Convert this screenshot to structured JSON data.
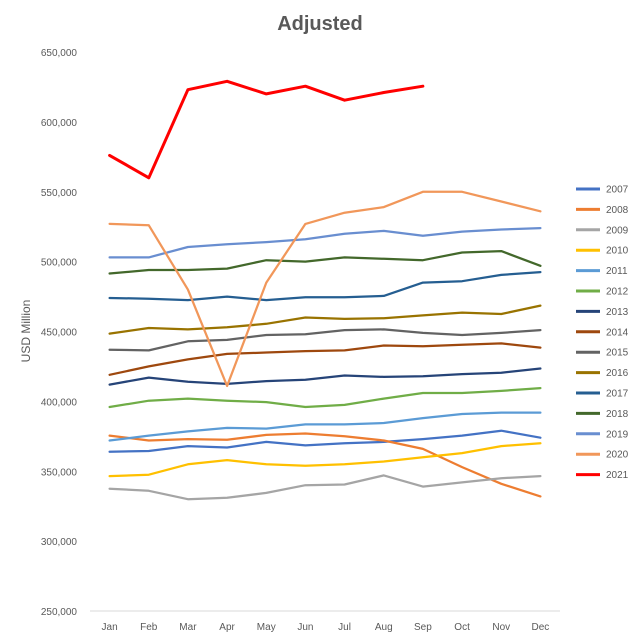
{
  "chart_data": {
    "type": "line",
    "title": "Adjusted",
    "xlabel": "",
    "ylabel": "USD Million",
    "ylim": [
      250000,
      650000
    ],
    "y_ticks": [
      "250,000",
      "300,000",
      "350,000",
      "400,000",
      "450,000",
      "500,000",
      "550,000",
      "600,000",
      "650,000"
    ],
    "categories": [
      "Jan",
      "Feb",
      "Mar",
      "Apr",
      "May",
      "Jun",
      "Jul",
      "Aug",
      "Sep",
      "Oct",
      "Nov",
      "Dec"
    ],
    "grid": false,
    "legend_position": "right",
    "series": [
      {
        "name": "2007",
        "color": "#4472C4",
        "values": [
          364000,
          364500,
          368000,
          367000,
          371000,
          368500,
          370000,
          371000,
          373000,
          375500,
          379000,
          374000
        ]
      },
      {
        "name": "2008",
        "color": "#ED7D31",
        "values": [
          375500,
          372000,
          373000,
          372500,
          376000,
          377000,
          375000,
          372000,
          366000,
          353000,
          341000,
          332000
        ]
      },
      {
        "name": "2009",
        "color": "#A5A5A5",
        "values": [
          337500,
          336000,
          330000,
          331000,
          334500,
          340000,
          340500,
          347000,
          339000,
          342000,
          345000,
          346500
        ]
      },
      {
        "name": "2010",
        "color": "#FFC000",
        "values": [
          346500,
          347500,
          355000,
          358000,
          355000,
          354000,
          355000,
          357000,
          360000,
          363000,
          368000,
          370000
        ]
      },
      {
        "name": "2011",
        "color": "#5B9BD5",
        "values": [
          372000,
          375500,
          378500,
          381000,
          380500,
          383500,
          383500,
          384500,
          388000,
          391000,
          392000,
          392000
        ]
      },
      {
        "name": "2012",
        "color": "#70AD47",
        "values": [
          396000,
          400500,
          402000,
          400500,
          399500,
          396000,
          397500,
          402000,
          406000,
          406000,
          407500,
          409500
        ]
      },
      {
        "name": "2013",
        "color": "#264478",
        "values": [
          412000,
          417000,
          414000,
          412500,
          414500,
          415500,
          418500,
          417500,
          418000,
          419500,
          420500,
          423500
        ]
      },
      {
        "name": "2014",
        "color": "#9E480E",
        "values": [
          419000,
          425000,
          430000,
          434000,
          435000,
          436000,
          436500,
          440000,
          439500,
          440500,
          441500,
          438500
        ]
      },
      {
        "name": "2015",
        "color": "#636363",
        "values": [
          437000,
          436500,
          443000,
          444000,
          447500,
          448000,
          451000,
          451500,
          449000,
          447500,
          449000,
          451000
        ]
      },
      {
        "name": "2016",
        "color": "#997300",
        "values": [
          448500,
          452500,
          451500,
          453000,
          455500,
          460000,
          459000,
          459500,
          461500,
          463500,
          462500,
          468500
        ]
      },
      {
        "name": "2017",
        "color": "#255E91",
        "values": [
          474000,
          473500,
          472500,
          475000,
          472500,
          474500,
          474500,
          475500,
          485000,
          486000,
          490500,
          492500
        ]
      },
      {
        "name": "2018",
        "color": "#43682B",
        "values": [
          491500,
          494000,
          494000,
          495000,
          501000,
          500000,
          503000,
          502000,
          501000,
          506500,
          507500,
          497000
        ]
      },
      {
        "name": "2019",
        "color": "#698ED0",
        "values": [
          503000,
          503000,
          510500,
          512500,
          514000,
          516000,
          520000,
          522000,
          518500,
          521500,
          523000,
          524000
        ]
      },
      {
        "name": "2020",
        "color": "#F1975A",
        "values": [
          527000,
          526000,
          480000,
          411000,
          485000,
          527000,
          535000,
          539000,
          550000,
          550000,
          543000,
          536000
        ]
      },
      {
        "name": "2021",
        "color": "#FF0000",
        "values": [
          576000,
          560000,
          623000,
          629000,
          620000,
          625500,
          615500,
          621000,
          625500,
          null,
          null,
          null
        ]
      }
    ]
  }
}
